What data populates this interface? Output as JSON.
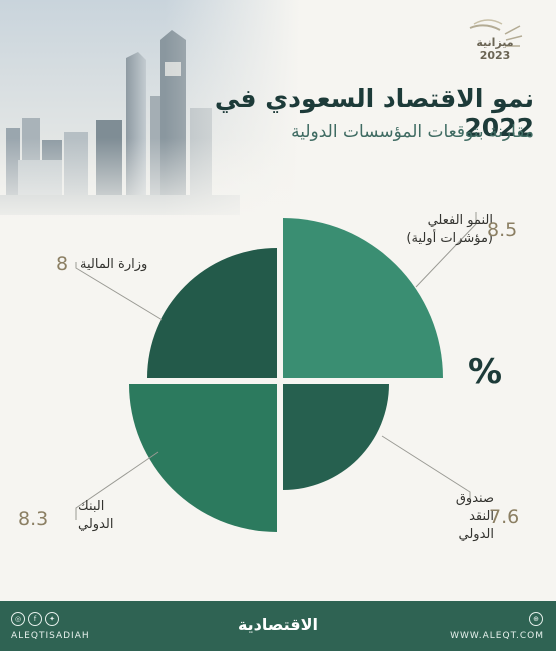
{
  "header": {
    "title": "نمو الاقتصاد السعودي في 2022",
    "subtitle": "مقارنة بتوقعات المؤسسات الدولية",
    "logo_word": "ميزانية",
    "logo_year": "2023"
  },
  "unit": "%",
  "chart_data": {
    "type": "pie",
    "title": "نمو الاقتصاد السعودي في 2022",
    "subtitle": "مقارنة بتوقعات المؤسسات الدولية",
    "unit": "%",
    "slices": [
      {
        "label_lines": [
          "النمو الفعلي",
          "(مؤشرات أولية)"
        ],
        "value": 8.5,
        "value_text": "8.5",
        "color": "#3a8e72"
      },
      {
        "label_lines": [
          "صندوق",
          "النقد",
          "الدولي"
        ],
        "value": 7.6,
        "value_text": "7.6",
        "color": "#26604f"
      },
      {
        "label_lines": [
          "البنك",
          "الدولي"
        ],
        "value": 8.3,
        "value_text": "8.3",
        "color": "#2c7a5e"
      },
      {
        "label_lines": [
          "وزارة المالية"
        ],
        "value": 8,
        "value_text": "8",
        "color": "#235a4a"
      }
    ]
  },
  "footer": {
    "brand": "الاقتصادية",
    "handle": "ALEQTISADIAH",
    "site": "WWW.ALEQT.COM"
  },
  "colors": {
    "footer_bg": "#2f6353",
    "title": "#1d3b39",
    "values": "#8b7f63",
    "leader": "#9a9a94"
  }
}
